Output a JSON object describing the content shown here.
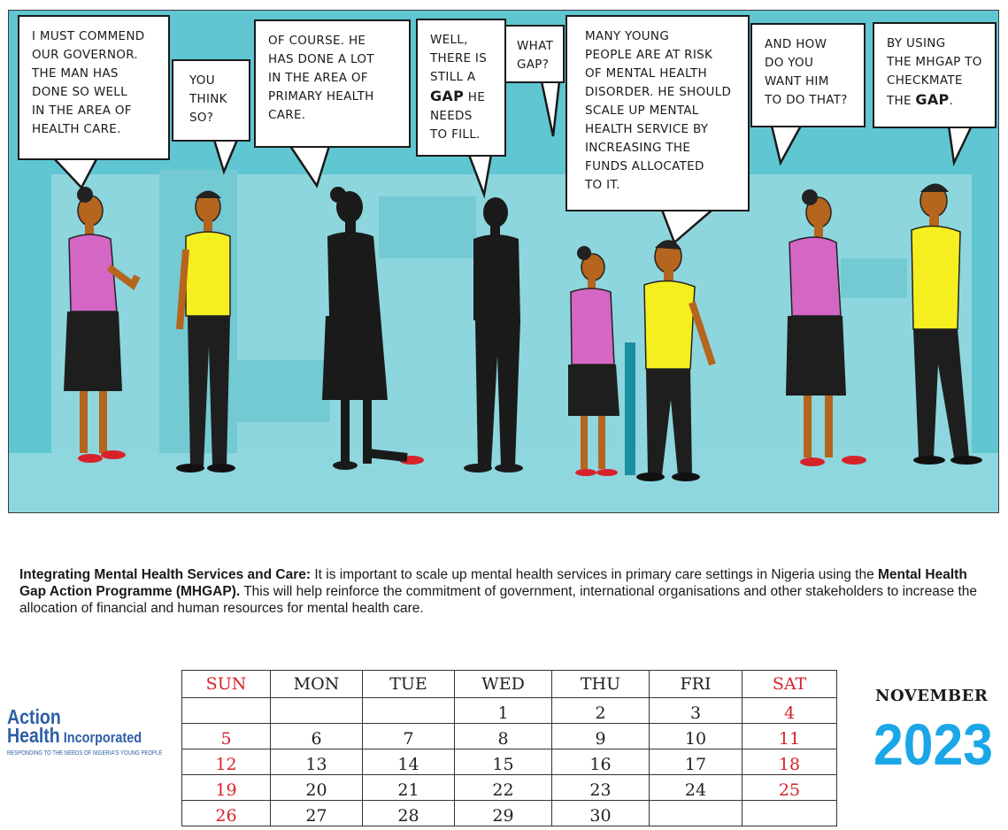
{
  "comic": {
    "bubbles": [
      "I must commend\nour governor.\nThe man has\ndone so well\nin the area of\nhealth care.",
      "You\nthink\nso?",
      "Of course.  He\nhas done a lot\nin the area of\nprimary health\ncare.",
      "Well,\nthere is\nstill a",
      "he",
      "needs\nto fill.",
      "What\ngap?",
      "Many young\npeople are at risk\nof mental health\ndisorder. He should\nscale up mental\nhealth service by\nincreasing the\nfunds allocated\nto it.",
      "And how\ndo you\nwant him\nto do that?",
      "By using\nthe MHGAP to\ncheckmate\nthe",
      "."
    ],
    "gap_word": "GAP",
    "colors": {
      "background": "#5fc6d2",
      "pink_top": "#d466c4",
      "yellow_top": "#f6ef20",
      "skin": "#b5651d",
      "silhouette": "#1a1a1a"
    }
  },
  "caption": {
    "title": "Integrating Mental Health Services and Care:",
    "text1": "  It is important to scale up mental health services in primary care settings in Nigeria using the ",
    "program": "Mental Health Gap Action Programme (MHGAP).",
    "text2": " This will help reinforce the commitment of government, international organisations and other stakeholders to increase the allocation of financial and human resources for mental health care."
  },
  "logo": {
    "line1": "Action",
    "line2a": "Health",
    "line2b": " Incorporated",
    "tagline": "RESPONDING TO THE NEEDS OF NIGERIA'S YOUNG PEOPLE",
    "color": "#2e5ea6"
  },
  "calendar": {
    "month": "NOVEMBER",
    "year": "2023",
    "days": [
      "SUN",
      "MON",
      "TUE",
      "WED",
      "THU",
      "FRI",
      "SAT"
    ],
    "weeks": [
      [
        "",
        "",
        "",
        "1",
        "2",
        "3",
        "4"
      ],
      [
        "5",
        "6",
        "7",
        "8",
        "9",
        "10",
        "11"
      ],
      [
        "12",
        "13",
        "14",
        "15",
        "16",
        "17",
        "18"
      ],
      [
        "19",
        "20",
        "21",
        "22",
        "23",
        "24",
        "25"
      ],
      [
        "26",
        "27",
        "28",
        "29",
        "30",
        "",
        ""
      ]
    ],
    "weekend_color": "#d8222a",
    "year_color": "#1aa7e8"
  }
}
